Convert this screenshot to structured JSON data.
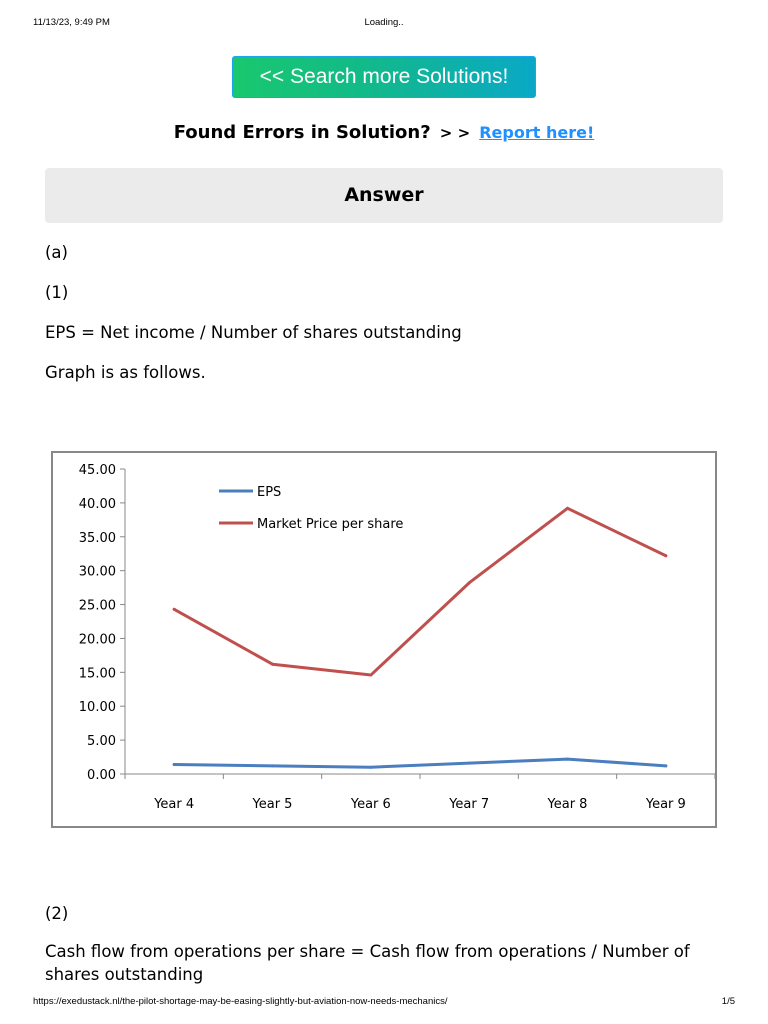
{
  "print_header": {
    "datetime": "11/13/23, 9:49 PM",
    "title": "Loading.."
  },
  "print_footer": {
    "url": "https://exedustack.nl/the-pilot-shortage-may-be-easing-slightly-but-aviation-now-needs-mechanics/",
    "page": "1/5"
  },
  "search_button": {
    "label": "<< Search more Solutions!"
  },
  "errors": {
    "text": "Found Errors in Solution?",
    "arrows": "> >",
    "link": "Report here!"
  },
  "answer_heading": "Answer",
  "body": {
    "part_a": "(a)",
    "item_1": "(1)",
    "eps_formula": "EPS = Net income / Number of shares outstanding",
    "graph_intro": "Graph is as follows.",
    "item_2": "(2)",
    "cfo_formula": "Cash flow from operations per share = Cash flow from operations / Number of shares outstanding"
  },
  "colors": {
    "eps_line": "#4a7ebf",
    "market_line": "#c0504d",
    "search_button_start": "#19c86e",
    "search_button_end": "#0aa8c7",
    "link": "#1e90ff"
  },
  "chart_data": {
    "type": "line",
    "categories": [
      "Year 4",
      "Year 5",
      "Year 6",
      "Year 7",
      "Year 8",
      "Year 9"
    ],
    "series": [
      {
        "name": "EPS",
        "color": "#4a7ebf",
        "values": [
          1.4,
          1.2,
          1.0,
          1.6,
          2.2,
          1.2
        ]
      },
      {
        "name": "Market Price per share",
        "color": "#c0504d",
        "values": [
          24.3,
          16.2,
          14.6,
          28.2,
          39.2,
          32.2
        ]
      }
    ],
    "y_ticks": [
      "0.00",
      "5.00",
      "10.00",
      "15.00",
      "20.00",
      "25.00",
      "30.00",
      "35.00",
      "40.00",
      "45.00"
    ],
    "ylim": [
      0,
      45
    ],
    "grid": false,
    "legend_position": "top-center"
  }
}
